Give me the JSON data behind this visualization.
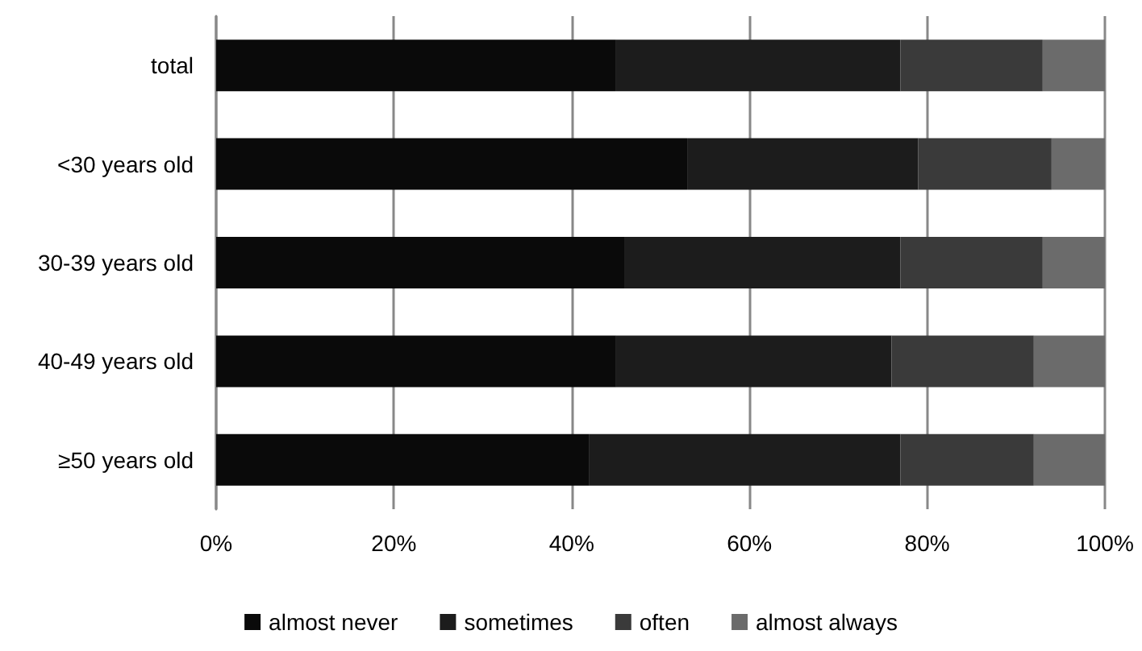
{
  "chart_data": {
    "type": "bar",
    "orientation": "horizontal",
    "stacked": true,
    "categories": [
      "total",
      "<30 years old",
      "30-39 years old",
      "40-49 years old",
      "≥50 years old"
    ],
    "series": [
      {
        "name": "almost never",
        "color": "#0a0a0a",
        "values": [
          45,
          53,
          46,
          45,
          42
        ]
      },
      {
        "name": "sometimes",
        "color": "#1c1c1c",
        "values": [
          32,
          26,
          31,
          31,
          35
        ]
      },
      {
        "name": "often",
        "color": "#3a3a3a",
        "values": [
          16,
          15,
          16,
          16,
          15
        ]
      },
      {
        "name": "almost always",
        "color": "#6b6b6b",
        "values": [
          7,
          6,
          7,
          8,
          8
        ]
      }
    ],
    "xlim": [
      0,
      100
    ],
    "xticks": [
      {
        "value": 0,
        "label": "0%"
      },
      {
        "value": 20,
        "label": "20%"
      },
      {
        "value": 40,
        "label": "40%"
      },
      {
        "value": 60,
        "label": "60%"
      },
      {
        "value": 80,
        "label": "80%"
      },
      {
        "value": 100,
        "label": "100%"
      }
    ],
    "grid": "x",
    "legend": "bottom"
  }
}
